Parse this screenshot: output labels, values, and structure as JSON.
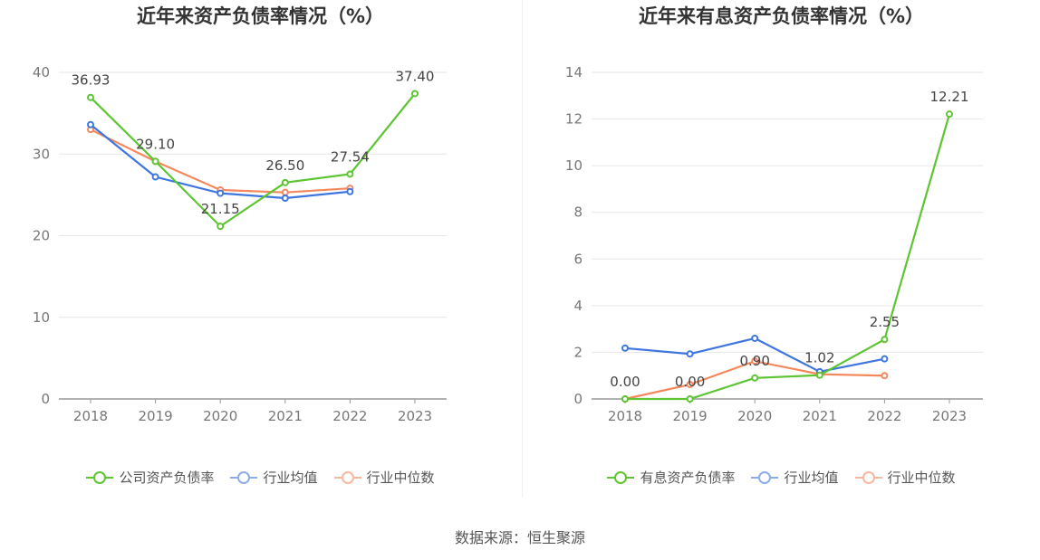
{
  "source": "数据来源：恒生聚源",
  "chart_data": [
    {
      "type": "line",
      "title": "近年来资产负债率情况（%）",
      "categories": [
        "2018",
        "2019",
        "2020",
        "2021",
        "2022",
        "2023"
      ],
      "ylim": [
        0,
        40
      ],
      "yticks": [
        "0",
        "10",
        "20",
        "30",
        "40"
      ],
      "grid": true,
      "legend_position": "bottom-center",
      "series": [
        {
          "name": "公司资产负债率",
          "color": "#5cc531",
          "values": [
            36.93,
            29.1,
            21.15,
            26.5,
            27.54,
            37.4
          ],
          "labels": [
            "36.93",
            "29.10",
            "21.15",
            "26.50",
            "27.54",
            "37.40"
          ]
        },
        {
          "name": "行业均值",
          "color": "#3e76e0",
          "values": [
            33.6,
            27.2,
            25.2,
            24.6,
            25.4,
            null
          ]
        },
        {
          "name": "行业中位数",
          "color": "#f4875c",
          "values": [
            33.0,
            29.1,
            25.6,
            25.3,
            25.8,
            null
          ]
        }
      ]
    },
    {
      "type": "line",
      "title": "近年来有息资产负债率情况（%）",
      "categories": [
        "2018",
        "2019",
        "2020",
        "2021",
        "2022",
        "2023"
      ],
      "ylim": [
        0,
        14
      ],
      "yticks": [
        "0",
        "2",
        "4",
        "6",
        "8",
        "10",
        "12",
        "14"
      ],
      "grid": true,
      "legend_position": "bottom-center",
      "series": [
        {
          "name": "有息资产负债率",
          "color": "#5cc531",
          "values": [
            0.0,
            0.0,
            0.9,
            1.02,
            2.55,
            12.21
          ],
          "labels": [
            "0.00",
            "0.00",
            "0.90",
            "1.02",
            "2.55",
            "12.21"
          ]
        },
        {
          "name": "行业均值",
          "color": "#3e76e0",
          "values": [
            2.18,
            1.93,
            2.6,
            1.17,
            1.72,
            null
          ]
        },
        {
          "name": "行业中位数",
          "color": "#f4875c",
          "values": [
            0.0,
            0.62,
            1.62,
            1.06,
            1.0,
            null
          ]
        }
      ]
    }
  ]
}
